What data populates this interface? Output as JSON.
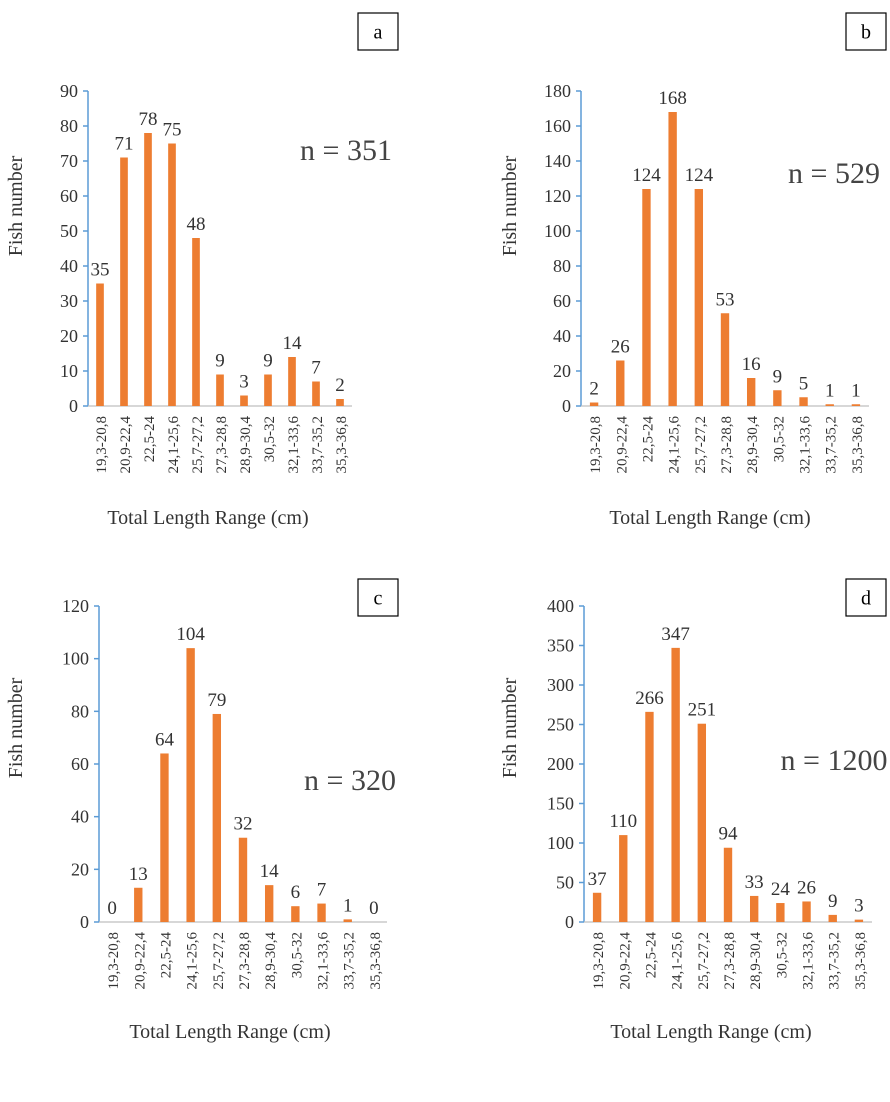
{
  "chart_data": [
    {
      "type": "bar",
      "panel_label": "a",
      "annotation": "n = 351",
      "xlabel": "Total Length Range (cm)",
      "ylabel": "Fish number",
      "ylim": [
        0,
        90
      ],
      "yticks": [
        0,
        10,
        20,
        30,
        40,
        50,
        60,
        70,
        80,
        90
      ],
      "categories": [
        "19,3-20,8",
        "20,9-22,4",
        "22,5-24",
        "24,1-25,6",
        "25,7-27,2",
        "27,3-28,8",
        "28,9-30,4",
        "30,5-32",
        "32,1-33,6",
        "33,7-35,2",
        "35,3-36,8"
      ],
      "values": [
        35,
        71,
        78,
        75,
        48,
        9,
        3,
        9,
        14,
        7,
        2
      ],
      "bar_color": "#ED7D31",
      "axis_color": "#5B9BD5"
    },
    {
      "type": "bar",
      "panel_label": "b",
      "annotation": "n = 529",
      "xlabel": "Total Length Range (cm)",
      "ylabel": "Fish number",
      "ylim": [
        0,
        180
      ],
      "yticks": [
        0,
        20,
        40,
        60,
        80,
        100,
        120,
        140,
        160,
        180
      ],
      "categories": [
        "19,3-20,8",
        "20,9-22,4",
        "22,5-24",
        "24,1-25,6",
        "25,7-27,2",
        "27,3-28,8",
        "28,9-30,4",
        "30,5-32",
        "32,1-33,6",
        "33,7-35,2",
        "35,3-36,8"
      ],
      "values": [
        2,
        26,
        124,
        168,
        124,
        53,
        16,
        9,
        5,
        1,
        1
      ],
      "bar_color": "#ED7D31",
      "axis_color": "#5B9BD5"
    },
    {
      "type": "bar",
      "panel_label": "c",
      "annotation": "n = 320",
      "xlabel": "Total Length Range (cm)",
      "ylabel": "Fish number",
      "ylim": [
        0,
        120
      ],
      "yticks": [
        0,
        20,
        40,
        60,
        80,
        100,
        120
      ],
      "categories": [
        "19,3-20,8",
        "20,9-22,4",
        "22,5-24",
        "24,1-25,6",
        "25,7-27,2",
        "27,3-28,8",
        "28,9-30,4",
        "30,5-32",
        "32,1-33,6",
        "33,7-35,2",
        "35,3-36,8"
      ],
      "values": [
        0,
        13,
        64,
        104,
        79,
        32,
        14,
        6,
        7,
        1,
        0
      ],
      "bar_color": "#ED7D31",
      "axis_color": "#5B9BD5"
    },
    {
      "type": "bar",
      "panel_label": "d",
      "annotation": "n = 1200",
      "xlabel": "Total Length Range (cm)",
      "ylabel": "Fish number",
      "ylim": [
        0,
        400
      ],
      "yticks": [
        0,
        50,
        100,
        150,
        200,
        250,
        300,
        350,
        400
      ],
      "categories": [
        "19,3-20,8",
        "20,9-22,4",
        "22,5-24",
        "24,1-25,6",
        "25,7-27,2",
        "27,3-28,8",
        "28,9-30,4",
        "30,5-32",
        "32,1-33,6",
        "33,7-35,2",
        "35,3-36,8"
      ],
      "values": [
        37,
        110,
        266,
        347,
        251,
        94,
        33,
        24,
        26,
        9,
        3
      ],
      "bar_color": "#ED7D31",
      "axis_color": "#5B9BD5"
    }
  ]
}
